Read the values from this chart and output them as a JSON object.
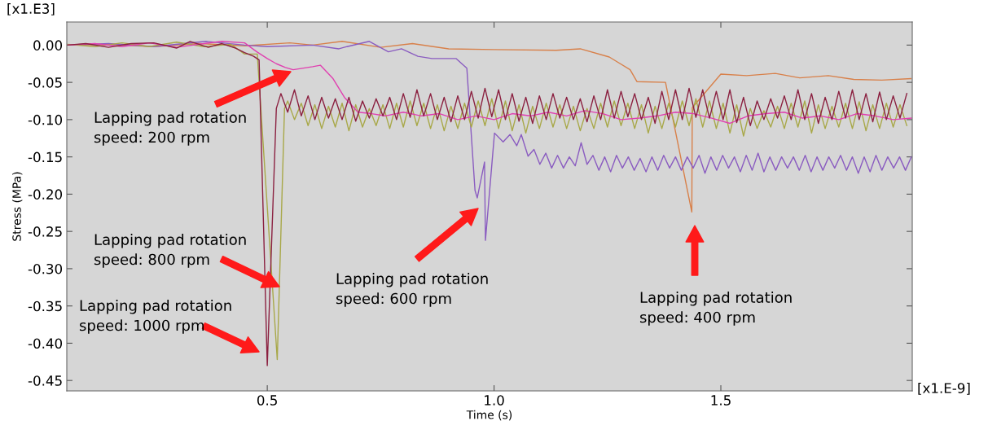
{
  "chart_data": {
    "type": "line",
    "xlabel": "Time (s)",
    "ylabel": "Stress (MPa)",
    "xlim": [
      0.058,
      1.922
    ],
    "ylim": [
      -0.464,
      0.031
    ],
    "xticks": [
      {
        "value": 0.5,
        "label": "0.5"
      },
      {
        "value": 1.0,
        "label": "1.0"
      },
      {
        "value": 1.5,
        "label": "1.5"
      }
    ],
    "yticks": [
      {
        "value": 0,
        "label": "0.00"
      },
      {
        "value": -0.05,
        "label": "-0.05"
      },
      {
        "value": -0.1,
        "label": "-0.10"
      },
      {
        "value": -0.15,
        "label": "-0.15"
      },
      {
        "value": -0.2,
        "label": "-0.20"
      },
      {
        "value": -0.25,
        "label": "-0.25"
      },
      {
        "value": -0.3,
        "label": "-0.30"
      },
      {
        "value": -0.35,
        "label": "-0.35"
      },
      {
        "value": -0.4,
        "label": "-0.40"
      },
      {
        "value": -0.45,
        "label": "-0.45"
      }
    ],
    "grid": false,
    "marker": "none",
    "line_style": "solid",
    "series": [
      {
        "color": "#d8804a",
        "x": [
          0.06,
          0.15,
          0.25,
          0.35,
          0.45,
          0.55,
          0.6,
          0.665,
          0.75,
          0.82,
          0.9,
          1.0,
          1.137,
          1.19,
          1.254,
          1.3,
          1.315,
          1.378,
          1.436,
          1.437,
          1.5,
          1.557,
          1.62,
          1.674,
          1.737,
          1.793,
          1.855,
          1.919
        ],
        "values": [
          0,
          0.001,
          -0.002,
          0.002,
          -0.001,
          0.003,
          0.0,
          0.005,
          -0.003,
          0.002,
          -0.005,
          -0.006,
          -0.007,
          -0.005,
          -0.016,
          -0.033,
          -0.049,
          -0.05,
          -0.224,
          -0.084,
          -0.039,
          -0.041,
          -0.038,
          -0.044,
          -0.041,
          -0.046,
          -0.047,
          -0.045
        ]
      },
      {
        "color": "#8a5cc0",
        "x": [
          0.06,
          0.15,
          0.25,
          0.365,
          0.45,
          0.5,
          0.6,
          0.658,
          0.676,
          0.725,
          0.767,
          0.796,
          0.832,
          0.863,
          0.916,
          0.94,
          0.958,
          0.963,
          0.979,
          0.981,
          1.001,
          1.02,
          1.035,
          1.05,
          1.06,
          1.075,
          1.088,
          1.101,
          1.114,
          1.127,
          1.14,
          1.153,
          1.166,
          1.179,
          1.192,
          1.205,
          1.218,
          1.231,
          1.244,
          1.257,
          1.27,
          1.283,
          1.296,
          1.309,
          1.322,
          1.335,
          1.348,
          1.361,
          1.374,
          1.387,
          1.4,
          1.413,
          1.426,
          1.439,
          1.452,
          1.465,
          1.478,
          1.491,
          1.504,
          1.517,
          1.53,
          1.543,
          1.556,
          1.569,
          1.582,
          1.595,
          1.608,
          1.621,
          1.634,
          1.647,
          1.66,
          1.673,
          1.686,
          1.699,
          1.712,
          1.725,
          1.738,
          1.751,
          1.764,
          1.777,
          1.79,
          1.803,
          1.816,
          1.829,
          1.842,
          1.855,
          1.868,
          1.881,
          1.894,
          1.907,
          1.92
        ],
        "values": [
          0,
          0.002,
          -0.002,
          0.005,
          0.0,
          -0.002,
          0.0,
          -0.005,
          -0.002,
          0.005,
          -0.009,
          -0.005,
          -0.015,
          -0.018,
          -0.018,
          -0.031,
          -0.195,
          -0.205,
          -0.157,
          -0.262,
          -0.118,
          -0.13,
          -0.12,
          -0.135,
          -0.12,
          -0.149,
          -0.14,
          -0.16,
          -0.145,
          -0.165,
          -0.148,
          -0.165,
          -0.15,
          -0.162,
          -0.131,
          -0.16,
          -0.148,
          -0.168,
          -0.15,
          -0.17,
          -0.148,
          -0.165,
          -0.15,
          -0.168,
          -0.152,
          -0.17,
          -0.15,
          -0.168,
          -0.148,
          -0.165,
          -0.15,
          -0.168,
          -0.15,
          -0.165,
          -0.148,
          -0.172,
          -0.15,
          -0.168,
          -0.148,
          -0.165,
          -0.15,
          -0.17,
          -0.148,
          -0.168,
          -0.145,
          -0.17,
          -0.15,
          -0.168,
          -0.15,
          -0.165,
          -0.15,
          -0.168,
          -0.148,
          -0.17,
          -0.15,
          -0.168,
          -0.15,
          -0.165,
          -0.148,
          -0.168,
          -0.15,
          -0.172,
          -0.15,
          -0.17,
          -0.148,
          -0.168,
          -0.15,
          -0.165,
          -0.15,
          -0.168,
          -0.15
        ]
      },
      {
        "color": "#a8a848",
        "x": [
          0.06,
          0.12,
          0.18,
          0.24,
          0.3,
          0.36,
          0.42,
          0.45,
          0.478,
          0.522,
          0.538,
          0.545,
          0.56,
          0.575,
          0.59,
          0.605,
          0.62,
          0.635,
          0.65,
          0.665,
          0.68,
          0.695,
          0.71,
          0.725,
          0.74,
          0.755,
          0.77,
          0.785,
          0.8,
          0.815,
          0.83,
          0.845,
          0.86,
          0.875,
          0.89,
          0.905,
          0.92,
          0.935,
          0.95,
          0.965,
          0.98,
          0.995,
          1.01,
          1.025,
          1.04,
          1.055,
          1.07,
          1.085,
          1.1,
          1.115,
          1.13,
          1.145,
          1.16,
          1.175,
          1.19,
          1.205,
          1.22,
          1.235,
          1.25,
          1.265,
          1.28,
          1.295,
          1.31,
          1.325,
          1.34,
          1.355,
          1.37,
          1.385,
          1.4,
          1.415,
          1.43,
          1.445,
          1.46,
          1.475,
          1.49,
          1.505,
          1.52,
          1.535,
          1.55,
          1.565,
          1.58,
          1.595,
          1.61,
          1.625,
          1.64,
          1.655,
          1.67,
          1.685,
          1.7,
          1.715,
          1.73,
          1.745,
          1.76,
          1.775,
          1.79,
          1.805,
          1.82,
          1.835,
          1.85,
          1.865,
          1.88,
          1.895,
          1.91
        ],
        "values": [
          0.001,
          -0.002,
          0.003,
          -0.002,
          0.004,
          -0.002,
          0.001,
          -0.012,
          -0.012,
          -0.422,
          -0.085,
          -0.075,
          -0.1,
          -0.078,
          -0.108,
          -0.08,
          -0.112,
          -0.082,
          -0.11,
          -0.078,
          -0.115,
          -0.08,
          -0.11,
          -0.085,
          -0.108,
          -0.08,
          -0.112,
          -0.078,
          -0.11,
          -0.075,
          -0.108,
          -0.078,
          -0.112,
          -0.08,
          -0.115,
          -0.082,
          -0.112,
          -0.078,
          -0.11,
          -0.075,
          -0.108,
          -0.072,
          -0.112,
          -0.075,
          -0.115,
          -0.08,
          -0.118,
          -0.082,
          -0.112,
          -0.078,
          -0.11,
          -0.08,
          -0.112,
          -0.082,
          -0.115,
          -0.085,
          -0.112,
          -0.078,
          -0.11,
          -0.075,
          -0.108,
          -0.078,
          -0.112,
          -0.08,
          -0.118,
          -0.082,
          -0.112,
          -0.078,
          -0.11,
          -0.075,
          -0.108,
          -0.072,
          -0.11,
          -0.075,
          -0.112,
          -0.078,
          -0.118,
          -0.08,
          -0.122,
          -0.085,
          -0.112,
          -0.088,
          -0.11,
          -0.082,
          -0.112,
          -0.078,
          -0.11,
          -0.075,
          -0.118,
          -0.08,
          -0.112,
          -0.082,
          -0.11,
          -0.078,
          -0.112,
          -0.076,
          -0.115,
          -0.08,
          -0.112,
          -0.078,
          -0.11,
          -0.08,
          -0.108
        ]
      },
      {
        "color": "#e040b0",
        "x": [
          0.06,
          0.12,
          0.18,
          0.24,
          0.3,
          0.36,
          0.4,
          0.45,
          0.477,
          0.5,
          0.52,
          0.54,
          0.557,
          0.6,
          0.617,
          0.645,
          0.67,
          0.7,
          0.73,
          0.76,
          0.8,
          0.84,
          0.88,
          0.92,
          0.96,
          1.0,
          1.04,
          1.08,
          1.12,
          1.16,
          1.2,
          1.24,
          1.28,
          1.32,
          1.36,
          1.4,
          1.44,
          1.48,
          1.52,
          1.56,
          1.6,
          1.64,
          1.68,
          1.72,
          1.76,
          1.8,
          1.84,
          1.88,
          1.92
        ],
        "values": [
          0,
          0.002,
          -0.002,
          0.003,
          -0.003,
          0.002,
          0.005,
          0.003,
          -0.009,
          -0.018,
          -0.025,
          -0.03,
          -0.033,
          -0.029,
          -0.027,
          -0.045,
          -0.07,
          -0.09,
          -0.092,
          -0.095,
          -0.09,
          -0.095,
          -0.092,
          -0.1,
          -0.095,
          -0.1,
          -0.092,
          -0.095,
          -0.09,
          -0.095,
          -0.088,
          -0.092,
          -0.1,
          -0.098,
          -0.095,
          -0.09,
          -0.092,
          -0.098,
          -0.105,
          -0.095,
          -0.092,
          -0.09,
          -0.098,
          -0.095,
          -0.1,
          -0.092,
          -0.095,
          -0.1,
          -0.098
        ]
      },
      {
        "color": "#8b2040",
        "x": [
          0.06,
          0.1,
          0.15,
          0.2,
          0.25,
          0.3,
          0.33,
          0.37,
          0.4,
          0.43,
          0.45,
          0.47,
          0.482,
          0.5,
          0.52,
          0.53,
          0.545,
          0.56,
          0.575,
          0.59,
          0.605,
          0.62,
          0.635,
          0.65,
          0.665,
          0.68,
          0.695,
          0.71,
          0.725,
          0.74,
          0.755,
          0.77,
          0.785,
          0.8,
          0.815,
          0.83,
          0.845,
          0.86,
          0.875,
          0.89,
          0.905,
          0.92,
          0.935,
          0.95,
          0.965,
          0.98,
          0.995,
          1.01,
          1.025,
          1.04,
          1.055,
          1.07,
          1.085,
          1.1,
          1.115,
          1.13,
          1.145,
          1.16,
          1.175,
          1.19,
          1.205,
          1.22,
          1.235,
          1.25,
          1.265,
          1.28,
          1.295,
          1.31,
          1.325,
          1.34,
          1.355,
          1.37,
          1.385,
          1.4,
          1.415,
          1.43,
          1.445,
          1.46,
          1.475,
          1.49,
          1.505,
          1.52,
          1.535,
          1.55,
          1.565,
          1.58,
          1.595,
          1.61,
          1.625,
          1.64,
          1.655,
          1.67,
          1.685,
          1.7,
          1.715,
          1.73,
          1.745,
          1.76,
          1.775,
          1.79,
          1.805,
          1.82,
          1.835,
          1.85,
          1.865,
          1.88,
          1.895,
          1.91
        ],
        "values": [
          0,
          0.002,
          -0.003,
          0.002,
          0.003,
          -0.004,
          0.005,
          -0.003,
          0.002,
          -0.004,
          -0.01,
          -0.015,
          -0.02,
          -0.43,
          -0.085,
          -0.065,
          -0.09,
          -0.06,
          -0.095,
          -0.068,
          -0.1,
          -0.07,
          -0.098,
          -0.072,
          -0.1,
          -0.07,
          -0.102,
          -0.075,
          -0.098,
          -0.072,
          -0.095,
          -0.07,
          -0.1,
          -0.065,
          -0.097,
          -0.06,
          -0.095,
          -0.065,
          -0.1,
          -0.07,
          -0.103,
          -0.068,
          -0.1,
          -0.062,
          -0.098,
          -0.058,
          -0.096,
          -0.06,
          -0.1,
          -0.065,
          -0.102,
          -0.07,
          -0.105,
          -0.068,
          -0.1,
          -0.065,
          -0.098,
          -0.07,
          -0.1,
          -0.072,
          -0.103,
          -0.068,
          -0.1,
          -0.06,
          -0.098,
          -0.062,
          -0.096,
          -0.065,
          -0.1,
          -0.07,
          -0.105,
          -0.062,
          -0.1,
          -0.06,
          -0.1,
          -0.058,
          -0.097,
          -0.06,
          -0.098,
          -0.062,
          -0.1,
          -0.06,
          -0.104,
          -0.07,
          -0.108,
          -0.075,
          -0.1,
          -0.072,
          -0.098,
          -0.068,
          -0.1,
          -0.06,
          -0.1,
          -0.065,
          -0.105,
          -0.07,
          -0.1,
          -0.062,
          -0.098,
          -0.06,
          -0.1,
          -0.065,
          -0.103,
          -0.063,
          -0.1,
          -0.068,
          -0.098,
          -0.065
        ]
      }
    ],
    "annotations": [
      "Lapping pad rotation\nspeed: 200 rpm",
      "Lapping pad rotation\nspeed: 800 rpm",
      "Lapping pad rotation\nspeed: 1000 rpm",
      "Lapping pad rotation\nspeed: 600 rpm",
      "Lapping pad rotation\nspeed: 400 rpm",
      "[x1.E3]",
      "[x1.E-9]"
    ]
  }
}
